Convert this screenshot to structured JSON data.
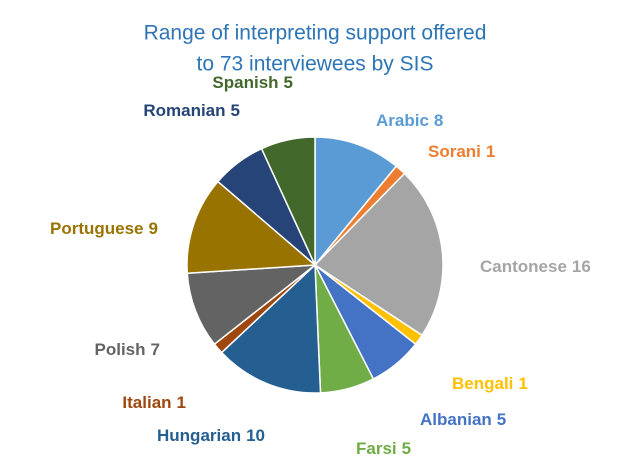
{
  "chart_data": {
    "type": "pie",
    "title": [
      "Range of interpreting support offered",
      "to 73 interviewees by SIS"
    ],
    "categories": [
      "Arabic",
      "Sorani",
      "Cantonese",
      "Bengali",
      "Albanian",
      "Farsi",
      "Hungarian",
      "Italian",
      "Polish",
      "Portuguese",
      "Romanian",
      "Spanish"
    ],
    "values": [
      8,
      1,
      16,
      1,
      5,
      5,
      10,
      1,
      7,
      9,
      5,
      5
    ],
    "colors": [
      "#5b9bd5",
      "#ed7d31",
      "#a5a5a5",
      "#ffc000",
      "#4472c4",
      "#70ad47",
      "#255e91",
      "#9e480e",
      "#636363",
      "#997300",
      "#264478",
      "#43682b"
    ]
  }
}
